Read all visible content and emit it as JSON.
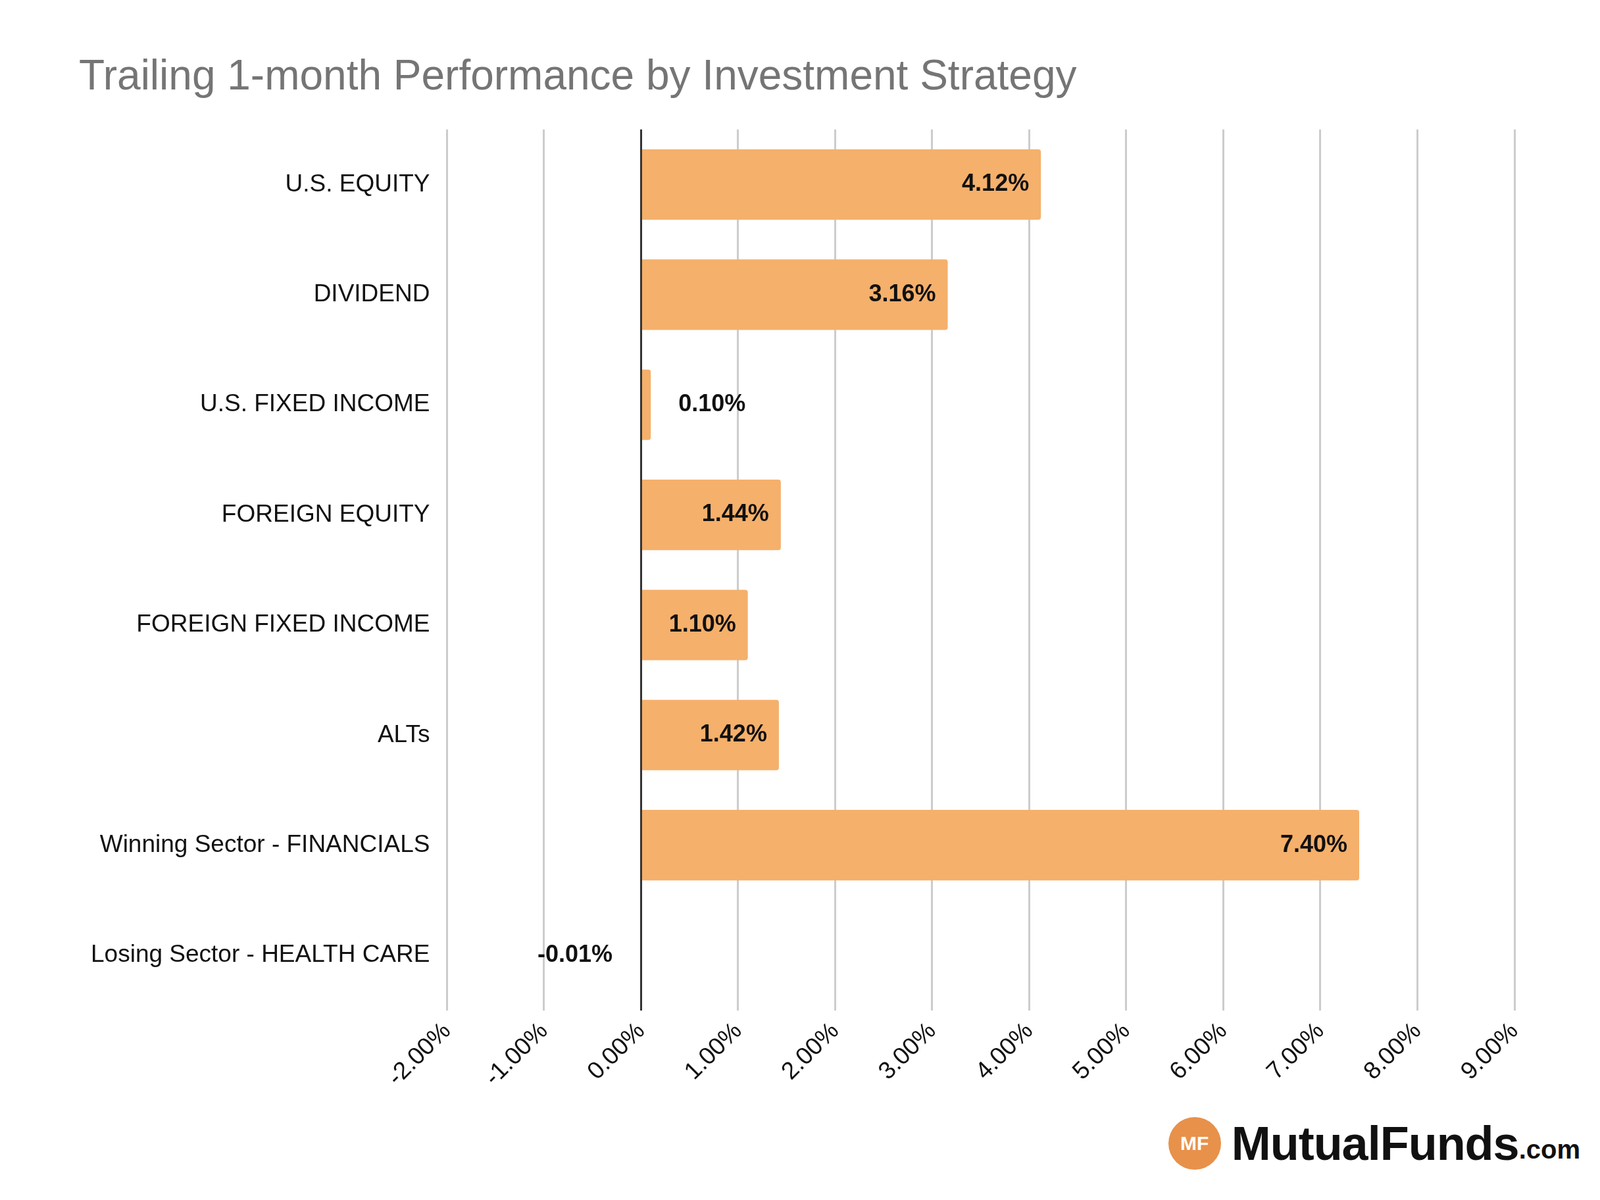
{
  "chart_data": {
    "type": "bar",
    "orientation": "horizontal",
    "title": "Trailing 1-month Performance by Investment Strategy",
    "categories": [
      "U.S. EQUITY",
      "DIVIDEND",
      "U.S. FIXED INCOME",
      "FOREIGN EQUITY",
      "FOREIGN FIXED INCOME",
      "ALTs",
      "Winning Sector - FINANCIALS",
      "Losing Sector - HEALTH CARE"
    ],
    "values": [
      4.12,
      3.16,
      0.1,
      1.44,
      1.1,
      1.42,
      7.4,
      -0.01
    ],
    "value_labels": [
      "4.12%",
      "3.16%",
      "0.10%",
      "1.44%",
      "1.10%",
      "1.42%",
      "7.40%",
      "-0.01%"
    ],
    "color": "#f5b06b",
    "xlim": [
      -2,
      9
    ],
    "xticks": [
      {
        "value": -2,
        "label": "-2.00%"
      },
      {
        "value": -1,
        "label": "-1.00%"
      },
      {
        "value": 0,
        "label": "0.00%"
      },
      {
        "value": 1,
        "label": "1.00%"
      },
      {
        "value": 2,
        "label": "2.00%"
      },
      {
        "value": 3,
        "label": "3.00%"
      },
      {
        "value": 4,
        "label": "4.00%"
      },
      {
        "value": 5,
        "label": "5.00%"
      },
      {
        "value": 6,
        "label": "6.00%"
      },
      {
        "value": 7,
        "label": "7.00%"
      },
      {
        "value": 8,
        "label": "8.00%"
      },
      {
        "value": 9,
        "label": "9.00%"
      }
    ],
    "grid": true,
    "data_labels": true
  },
  "logo": {
    "badge": "MF",
    "name": "MutualFunds",
    "suffix": ".com"
  }
}
